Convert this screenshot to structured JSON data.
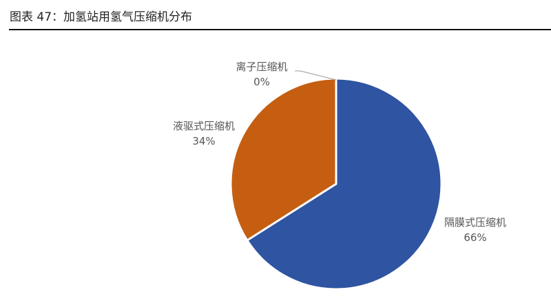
{
  "title": "图表 47：加氢站用氢气压缩机分布",
  "chart_data": {
    "type": "pie",
    "title": "图表 47：加氢站用氢气压缩机分布",
    "slices": [
      {
        "label": "隔膜式压缩机",
        "value": 66,
        "value_label": "66%",
        "color": "#2E54A2"
      },
      {
        "label": "液驱式压缩机",
        "value": 34,
        "value_label": "34%",
        "color": "#C55E11"
      },
      {
        "label": "离子压缩机",
        "value": 0,
        "value_label": "0%",
        "color": "#A5A5A5"
      }
    ],
    "start_angle": "top",
    "direction": "clockwise",
    "legend": "none"
  }
}
